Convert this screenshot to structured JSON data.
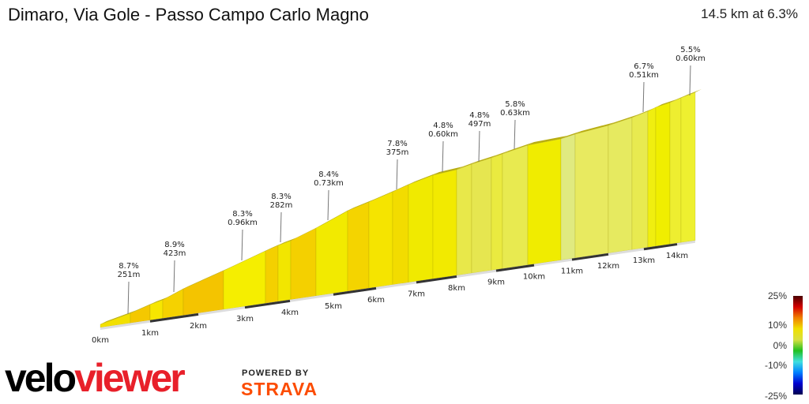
{
  "header": {
    "title": "Dimaro, Via Gole - Passo Campo Carlo Magno",
    "summary": "14.5 km at 6.3%"
  },
  "chart_data": {
    "type": "area",
    "title": "Dimaro, Via Gole - Passo Campo Carlo Magno",
    "distance_km": 14.5,
    "avg_gradient_pct": 6.3,
    "x_ticks": [
      "0km",
      "1km",
      "2km",
      "3km",
      "4km",
      "5km",
      "6km",
      "7km",
      "8km",
      "9km",
      "10km",
      "11km",
      "12km",
      "13km",
      "14km"
    ],
    "annotations": [
      {
        "gradient": "8.7%",
        "length": "251m"
      },
      {
        "gradient": "8.9%",
        "length": "423m"
      },
      {
        "gradient": "8.3%",
        "length": "0.96km"
      },
      {
        "gradient": "8.3%",
        "length": "282m"
      },
      {
        "gradient": "8.4%",
        "length": "0.73km"
      },
      {
        "gradient": "7.8%",
        "length": "375m"
      },
      {
        "gradient": "4.8%",
        "length": "0.60km"
      },
      {
        "gradient": "4.8%",
        "length": "497m"
      },
      {
        "gradient": "5.8%",
        "length": "0.63km"
      },
      {
        "gradient": "6.7%",
        "length": "0.51km"
      },
      {
        "gradient": "5.5%",
        "length": "0.60km"
      }
    ],
    "color_scale": {
      "labels": [
        "25%",
        "10%",
        "0%",
        "-10%",
        "-25%"
      ],
      "colors": [
        "#4a0000",
        "#d40000",
        "#f08000",
        "#f0e000",
        "#d8e040",
        "#20c020",
        "#40e0e0",
        "#0080ff",
        "#0000d0",
        "#000050"
      ]
    },
    "grid": false
  },
  "branding": {
    "logo": "veloviewer",
    "logo_a": "velo",
    "logo_b": "viewer",
    "powered": "POWERED BY",
    "strava": "STRAVA"
  }
}
